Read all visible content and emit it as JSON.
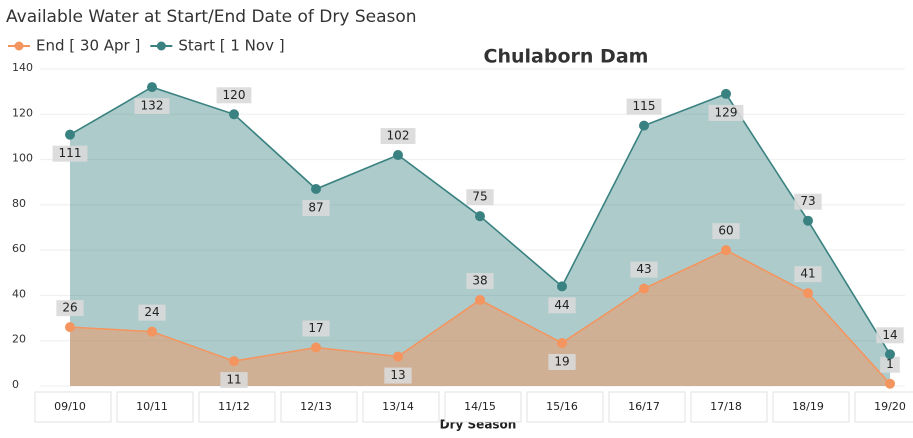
{
  "chart_data": {
    "type": "area",
    "title": "Available Water at Start/End Date of Dry Season",
    "subtitle": "Chulaborn Dam",
    "x_label": "Dry Season",
    "categories": [
      "09/10",
      "10/11",
      "11/12",
      "12/13",
      "13/14",
      "14/15",
      "15/16",
      "16/17",
      "17/18",
      "18/19",
      "19/20"
    ],
    "series": [
      {
        "name": "End [ 30 Apr ]",
        "color": "#f4955f",
        "values": [
          26,
          24,
          11,
          17,
          13,
          38,
          19,
          43,
          60,
          41,
          1
        ]
      },
      {
        "name": "Start [ 1 Nov ]",
        "color": "#3a8281",
        "values": [
          111,
          132,
          120,
          87,
          102,
          75,
          44,
          115,
          129,
          73,
          14
        ]
      }
    ],
    "ylim": [
      0,
      140
    ],
    "yticks": [
      0,
      20,
      40,
      60,
      80,
      100,
      120,
      140
    ],
    "grid": true
  }
}
